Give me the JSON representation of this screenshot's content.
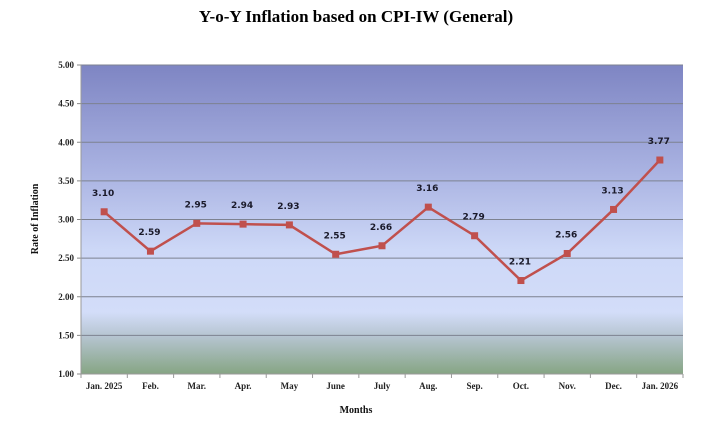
{
  "chart_data": {
    "type": "line",
    "title": "Y-o-Y Inflation based on CPI-IW (General)",
    "xlabel": "Months",
    "ylabel": "Rate of Inflation",
    "ylim": [
      1.0,
      5.0
    ],
    "ytick_step": 0.5,
    "yticks": [
      "1.00",
      "1.50",
      "2.00",
      "2.50",
      "3.00",
      "3.50",
      "4.00",
      "4.50",
      "5.00"
    ],
    "grid": true,
    "legend": "none",
    "categories": [
      "Jan. 2025",
      "Feb.",
      "Mar.",
      "Apr.",
      "May",
      "June",
      "July",
      "Aug.",
      "Sep.",
      "Oct.",
      "Nov.",
      "Dec.",
      "Jan. 2026"
    ],
    "series": [
      {
        "name": "Rate of Inflation",
        "color": "#c0504d",
        "values": [
          3.1,
          2.59,
          2.95,
          2.94,
          2.93,
          2.55,
          2.66,
          3.16,
          2.79,
          2.21,
          2.56,
          3.13,
          3.77
        ],
        "labels": [
          "3.10",
          "2.59",
          "2.95",
          "2.94",
          "2.93",
          "2.55",
          "2.66",
          "3.16",
          "2.79",
          "2.21",
          "2.56",
          "3.13",
          "3.77"
        ]
      }
    ]
  }
}
